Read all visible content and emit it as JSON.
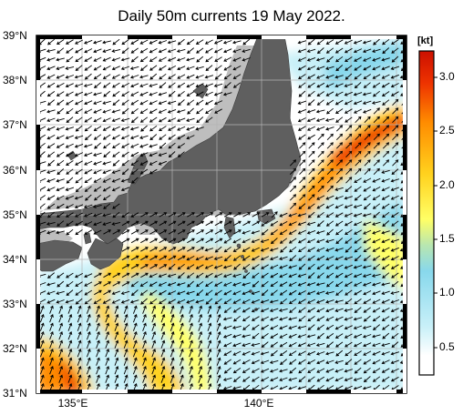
{
  "title": "Daily 50m currents 19 May 2022.",
  "map": {
    "lat_labels": [
      "39°N",
      "38°N",
      "37°N",
      "36°N",
      "35°N",
      "34°N",
      "33°N",
      "32°N",
      "31°N"
    ],
    "lon_labels": [
      "135°E",
      "140°E"
    ],
    "extent": {
      "lon_min": 134.2,
      "lon_max": 144.0,
      "lat_min": 31.0,
      "lat_max": 39.0
    }
  },
  "colorbar": {
    "unit": "[kt]",
    "tick_labels": [
      "3.0",
      "2.5",
      "2.0",
      "1.5",
      "1.0",
      "0.5"
    ],
    "colors": [
      "#ffffff",
      "#c8f0f8",
      "#88d8ec",
      "#ffff66",
      "#ffd21e",
      "#ff8c00",
      "#ee3300",
      "#cc1000"
    ]
  },
  "colors": {
    "land": "#5f5f5f",
    "shelf": "#bebebe",
    "grid": "#b4b4b4"
  }
}
